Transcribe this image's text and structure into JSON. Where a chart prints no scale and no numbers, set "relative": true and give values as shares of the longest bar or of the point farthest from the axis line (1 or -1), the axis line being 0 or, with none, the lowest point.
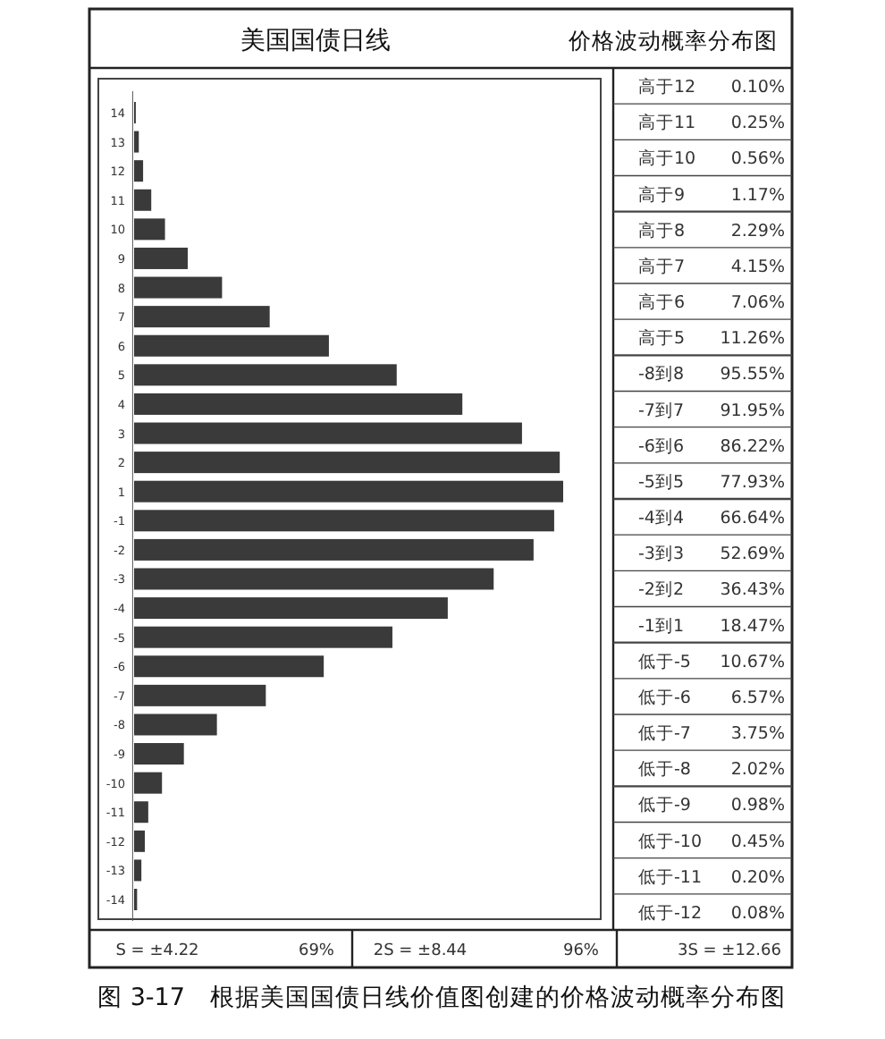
{
  "chart_data": [
    {
      "type": "bar",
      "orientation": "horizontal",
      "relative": true,
      "title": "美国国债日线",
      "color": "#3a3a3a",
      "categories": [
        "14",
        "13",
        "12",
        "11",
        "10",
        "9",
        "8",
        "7",
        "6",
        "5",
        "4",
        "3",
        "2",
        "1",
        "-1",
        "-2",
        "-3",
        "-4",
        "-5",
        "-6",
        "-7",
        "-8",
        "-9",
        "-10",
        "-11",
        "-12",
        "-13",
        "-14"
      ],
      "values": [
        0.004,
        0.011,
        0.021,
        0.04,
        0.072,
        0.125,
        0.205,
        0.316,
        0.454,
        0.612,
        0.765,
        0.904,
        0.992,
        1,
        0.979,
        0.931,
        0.838,
        0.731,
        0.602,
        0.442,
        0.307,
        0.193,
        0.116,
        0.065,
        0.033,
        0.025,
        0.017,
        0.007
      ],
      "annotations": [
        "S = ±4.22",
        "69%",
        "2S = ±8.44",
        "96%",
        "3S = ±12.66",
        "图 3-17　根据美国国债日线价值图创建的价格波动概率分布图"
      ]
    },
    {
      "type": "other",
      "title": "价格波动概率分布图",
      "annotations": [
        "高于12",
        "0.10%",
        "高于11",
        "0.25%",
        "高于10",
        "0.56%",
        "高于9",
        "1.17%",
        "高于8",
        "2.29%",
        "高于7",
        "4.15%",
        "高于6",
        "7.06%",
        "高于5",
        "11.26%",
        "-8到8",
        "95.55%",
        "-7到7",
        "91.95%",
        "-6到6",
        "86.22%",
        "-5到5",
        "77.93%",
        "-4到4",
        "66.64%",
        "-3到3",
        "52.69%",
        "-2到2",
        "36.43%",
        "-1到1",
        "18.47%",
        "低于-5",
        "10.67%",
        "低于-6",
        "6.57%",
        "低于-7",
        "3.75%",
        "低于-8",
        "2.02%",
        "低于-9",
        "0.98%",
        "低于-10",
        "0.45%",
        "低于-11",
        "0.20%",
        "低于-12",
        "0.08%"
      ]
    }
  ]
}
